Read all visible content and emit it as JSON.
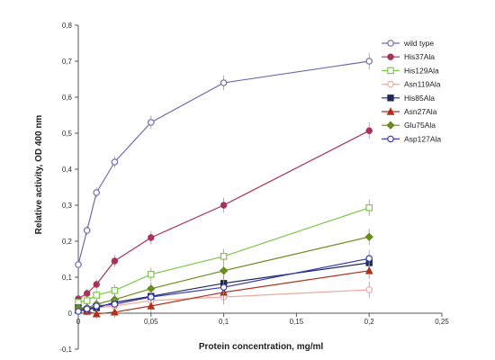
{
  "chart_data": {
    "type": "line",
    "xlabel": "Protein concentration, mg/ml",
    "ylabel": "Relative activity, OD 400 nm",
    "xlim": [
      0,
      0.25
    ],
    "ylim": [
      -0.1,
      0.8
    ],
    "x_ticks": [
      "0",
      "0,05",
      "0,1",
      "0,15",
      "0,2",
      "0,25"
    ],
    "y_ticks": [
      "-0,1",
      "0",
      "0,1",
      "0,2",
      "0,3",
      "0,4",
      "0,5",
      "0,6",
      "0,7",
      "0,8"
    ],
    "grid": false,
    "legend_position": "top-right",
    "series": [
      {
        "name": "wild type",
        "color": "#6b6bb0",
        "marker": "circle-open",
        "points": [
          [
            0,
            0.135
          ],
          [
            0.006,
            0.23
          ],
          [
            0.0125,
            0.335
          ],
          [
            0.025,
            0.42
          ],
          [
            0.05,
            0.53
          ],
          [
            0.1,
            0.64
          ],
          [
            0.2,
            0.7
          ]
        ]
      },
      {
        "name": "His37Ala",
        "color": "#a8325a",
        "marker": "circle-filled",
        "points": [
          [
            0,
            0.04
          ],
          [
            0.006,
            0.055
          ],
          [
            0.0125,
            0.08
          ],
          [
            0.025,
            0.145
          ],
          [
            0.05,
            0.21
          ],
          [
            0.1,
            0.3
          ],
          [
            0.2,
            0.507
          ]
        ]
      },
      {
        "name": "His129Ala",
        "color": "#7ec84a",
        "marker": "square-open",
        "points": [
          [
            0,
            0.03
          ],
          [
            0.006,
            0.035
          ],
          [
            0.0125,
            0.05
          ],
          [
            0.025,
            0.063
          ],
          [
            0.05,
            0.108
          ],
          [
            0.1,
            0.158
          ],
          [
            0.2,
            0.293
          ]
        ]
      },
      {
        "name": "Asn119Ala",
        "color": "#f0a8a0",
        "marker": "circle-open",
        "points": [
          [
            0,
            0.01
          ],
          [
            0.006,
            0.01
          ],
          [
            0.0125,
            0.015
          ],
          [
            0.025,
            0.02
          ],
          [
            0.05,
            0.035
          ],
          [
            0.1,
            0.045
          ],
          [
            0.2,
            0.065
          ]
        ]
      },
      {
        "name": "His85Ala",
        "color": "#1f2a5c",
        "marker": "square-filled",
        "points": [
          [
            0,
            0.015
          ],
          [
            0.006,
            0.01
          ],
          [
            0.0125,
            0.015
          ],
          [
            0.025,
            0.03
          ],
          [
            0.05,
            0.047
          ],
          [
            0.1,
            0.083
          ],
          [
            0.2,
            0.14
          ]
        ]
      },
      {
        "name": "Asn27Ala",
        "color": "#b0301a",
        "marker": "triangle-filled",
        "points": [
          [
            0,
            0.01
          ],
          [
            0.006,
            0.005
          ],
          [
            0.0125,
            -0.002
          ],
          [
            0.025,
            0.003
          ],
          [
            0.05,
            0.02
          ],
          [
            0.1,
            0.058
          ],
          [
            0.2,
            0.118
          ]
        ]
      },
      {
        "name": "Glu75Ala",
        "color": "#6b8b1e",
        "marker": "diamond-filled",
        "points": [
          [
            0,
            0.015
          ],
          [
            0.006,
            0.015
          ],
          [
            0.0125,
            0.025
          ],
          [
            0.025,
            0.038
          ],
          [
            0.05,
            0.068
          ],
          [
            0.1,
            0.118
          ],
          [
            0.2,
            0.212
          ]
        ]
      },
      {
        "name": "Asp127Ala",
        "color": "#3b3bb5",
        "marker": "circle-open",
        "points": [
          [
            0,
            0.005
          ],
          [
            0.006,
            0.012
          ],
          [
            0.0125,
            0.02
          ],
          [
            0.025,
            0.025
          ],
          [
            0.05,
            0.045
          ],
          [
            0.1,
            0.072
          ],
          [
            0.2,
            0.152
          ]
        ]
      }
    ]
  }
}
